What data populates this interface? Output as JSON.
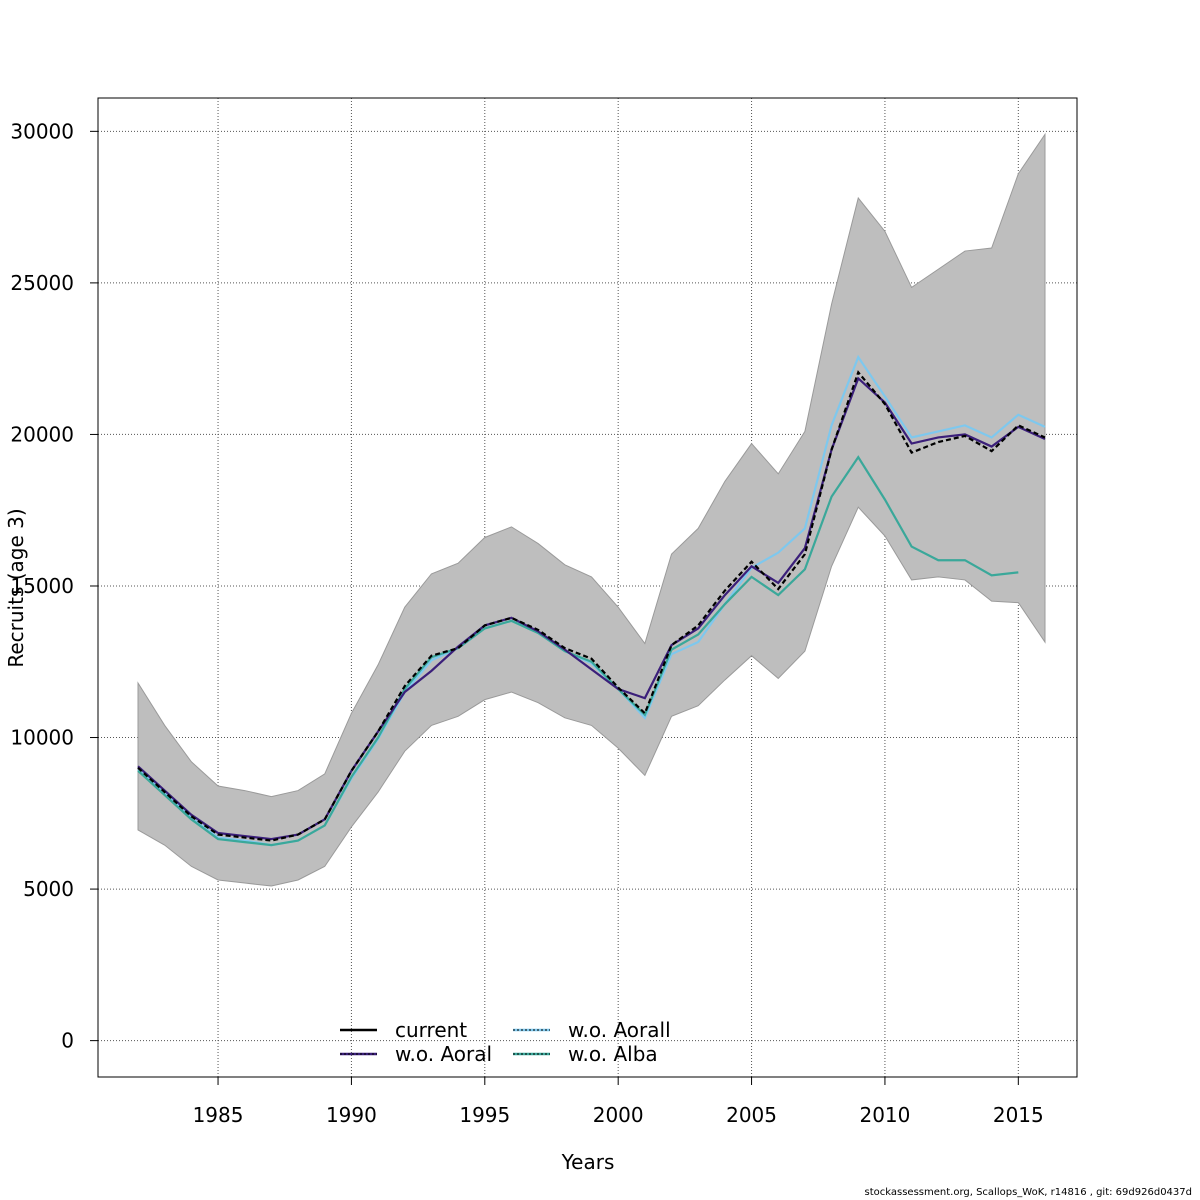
{
  "footer": {
    "source_note": "stockassessment.org, Scallops_WoK, r14816 , git: 69d926d0437d"
  },
  "chart_data": {
    "type": "line",
    "title": "",
    "xlabel": "Years",
    "ylabel": "Recruits (age 3)",
    "xlim": [
      1980.5,
      2017.2
    ],
    "ylim": [
      -1200,
      31100
    ],
    "x_ticks": [
      1985,
      1990,
      1995,
      2000,
      2005,
      2010,
      2015
    ],
    "y_ticks": [
      0,
      5000,
      10000,
      15000,
      20000,
      25000,
      30000
    ],
    "grid": true,
    "legend_position": "bottom-center",
    "colors": {
      "band": "#bebebe",
      "current": "#000000",
      "w_o_aoral": "#3b1f7a",
      "w_o_aorall": "#7ec8ee",
      "w_o_alba": "#3aa89a",
      "grid": "#555555"
    },
    "confidence_band": {
      "x": [
        1982,
        1983,
        1984,
        1985,
        1986,
        1987,
        1988,
        1989,
        1990,
        1991,
        1992,
        1993,
        1994,
        1995,
        1996,
        1997,
        1998,
        1999,
        2000,
        2001,
        2002,
        2003,
        2004,
        2005,
        2006,
        2007,
        2008,
        2009,
        2010,
        2011,
        2012,
        2013,
        2014,
        2015,
        2016
      ],
      "upper": [
        11800,
        10400,
        9200,
        8400,
        8250,
        8050,
        8250,
        8800,
        10800,
        12400,
        14300,
        15400,
        15750,
        16600,
        16950,
        16400,
        15700,
        15300,
        14300,
        13100,
        16050,
        16900,
        18450,
        19700,
        18700,
        20100,
        24300,
        27800,
        26700,
        24850,
        25450,
        26050,
        26150,
        28600,
        29900
      ],
      "lower": [
        6950,
        6450,
        5750,
        5300,
        5200,
        5100,
        5300,
        5750,
        7050,
        8200,
        9550,
        10400,
        10700,
        11250,
        11500,
        11150,
        10650,
        10400,
        9650,
        8750,
        10700,
        11050,
        11900,
        12700,
        11950,
        12850,
        15650,
        17600,
        16650,
        15200,
        15300,
        15200,
        14500,
        14450,
        13150
      ]
    },
    "series": [
      {
        "name": "current",
        "style": "solid",
        "x": [
          1982,
          1983,
          1984,
          1985,
          1986,
          1987,
          1988,
          1989,
          1990,
          1991,
          1992,
          1993,
          1994,
          1995,
          1996,
          1997,
          1998,
          1999,
          2000,
          2001,
          2002,
          2003,
          2004,
          2005,
          2006,
          2007,
          2008,
          2009,
          2010,
          2011,
          2012,
          2013,
          2014,
          2015,
          2016
        ],
        "values": [
          9000,
          8200,
          7400,
          6800,
          6700,
          6600,
          6800,
          7300,
          8900,
          10200,
          11700,
          12700,
          12950,
          13700,
          13950,
          13550,
          12950,
          12600,
          11650,
          10800,
          13050,
          13700,
          14850,
          15800,
          14900,
          16050,
          19500,
          22050,
          21000,
          19400,
          19750,
          19950,
          19450,
          20300,
          19900
        ]
      },
      {
        "name": "w.o. Aoral",
        "style": "solid",
        "x": [
          1982,
          1983,
          1984,
          1985,
          1986,
          1987,
          1988,
          1989,
          1990,
          1991,
          1992,
          1993,
          1994,
          1995,
          1996,
          1997,
          1998,
          1999,
          2000,
          2001,
          2002,
          2003,
          2004,
          2005,
          2006,
          2007,
          2008,
          2009,
          2010,
          2011,
          2012,
          2013,
          2014,
          2015,
          2016
        ],
        "values": [
          9050,
          8250,
          7450,
          6850,
          6750,
          6650,
          6800,
          7300,
          8900,
          10200,
          11500,
          12200,
          13000,
          13700,
          13950,
          13500,
          12900,
          12250,
          11600,
          11300,
          13050,
          13600,
          14700,
          15650,
          15100,
          16250,
          19500,
          21850,
          21050,
          19700,
          19900,
          20000,
          19600,
          20250,
          19850
        ]
      },
      {
        "name": "w.o. Aorall",
        "style": "dotted",
        "x": [
          1982,
          1983,
          1984,
          1985,
          1986,
          1987,
          1988,
          1989,
          1990,
          1991,
          1992,
          1993,
          1994,
          1995,
          1996,
          1997,
          1998,
          1999,
          2000,
          2001,
          2002,
          2003,
          2004,
          2005,
          2006,
          2007,
          2008,
          2009,
          2010,
          2011,
          2012,
          2013,
          2014,
          2015,
          2016
        ],
        "values": [
          8950,
          8150,
          7350,
          6700,
          6600,
          6450,
          6600,
          7100,
          8650,
          9950,
          11500,
          12550,
          12950,
          13600,
          13850,
          13450,
          12850,
          12450,
          11600,
          10650,
          12750,
          13150,
          14400,
          15600,
          16100,
          16900,
          20300,
          22550,
          21250,
          19900,
          20100,
          20300,
          19900,
          20650,
          20250
        ]
      },
      {
        "name": "w.o. Alba",
        "style": "solid",
        "x": [
          1982,
          1983,
          1984,
          1985,
          1986,
          1987,
          1988,
          1989,
          1990,
          1991,
          1992,
          1993,
          1994,
          1995,
          1996,
          1997,
          1998,
          1999,
          2000,
          2001,
          2002,
          2003,
          2004,
          2005,
          2006,
          2007,
          2008,
          2009,
          2010,
          2011,
          2012,
          2013,
          2014,
          2015
        ],
        "values": [
          8900,
          8100,
          7300,
          6650,
          6550,
          6450,
          6600,
          7100,
          8700,
          10000,
          11600,
          12650,
          12950,
          13600,
          13850,
          13450,
          12850,
          12500,
          11600,
          10750,
          12900,
          13400,
          14400,
          15300,
          14700,
          15550,
          17950,
          19250,
          17850,
          16300,
          15850,
          15850,
          15350,
          15450
        ]
      }
    ]
  }
}
